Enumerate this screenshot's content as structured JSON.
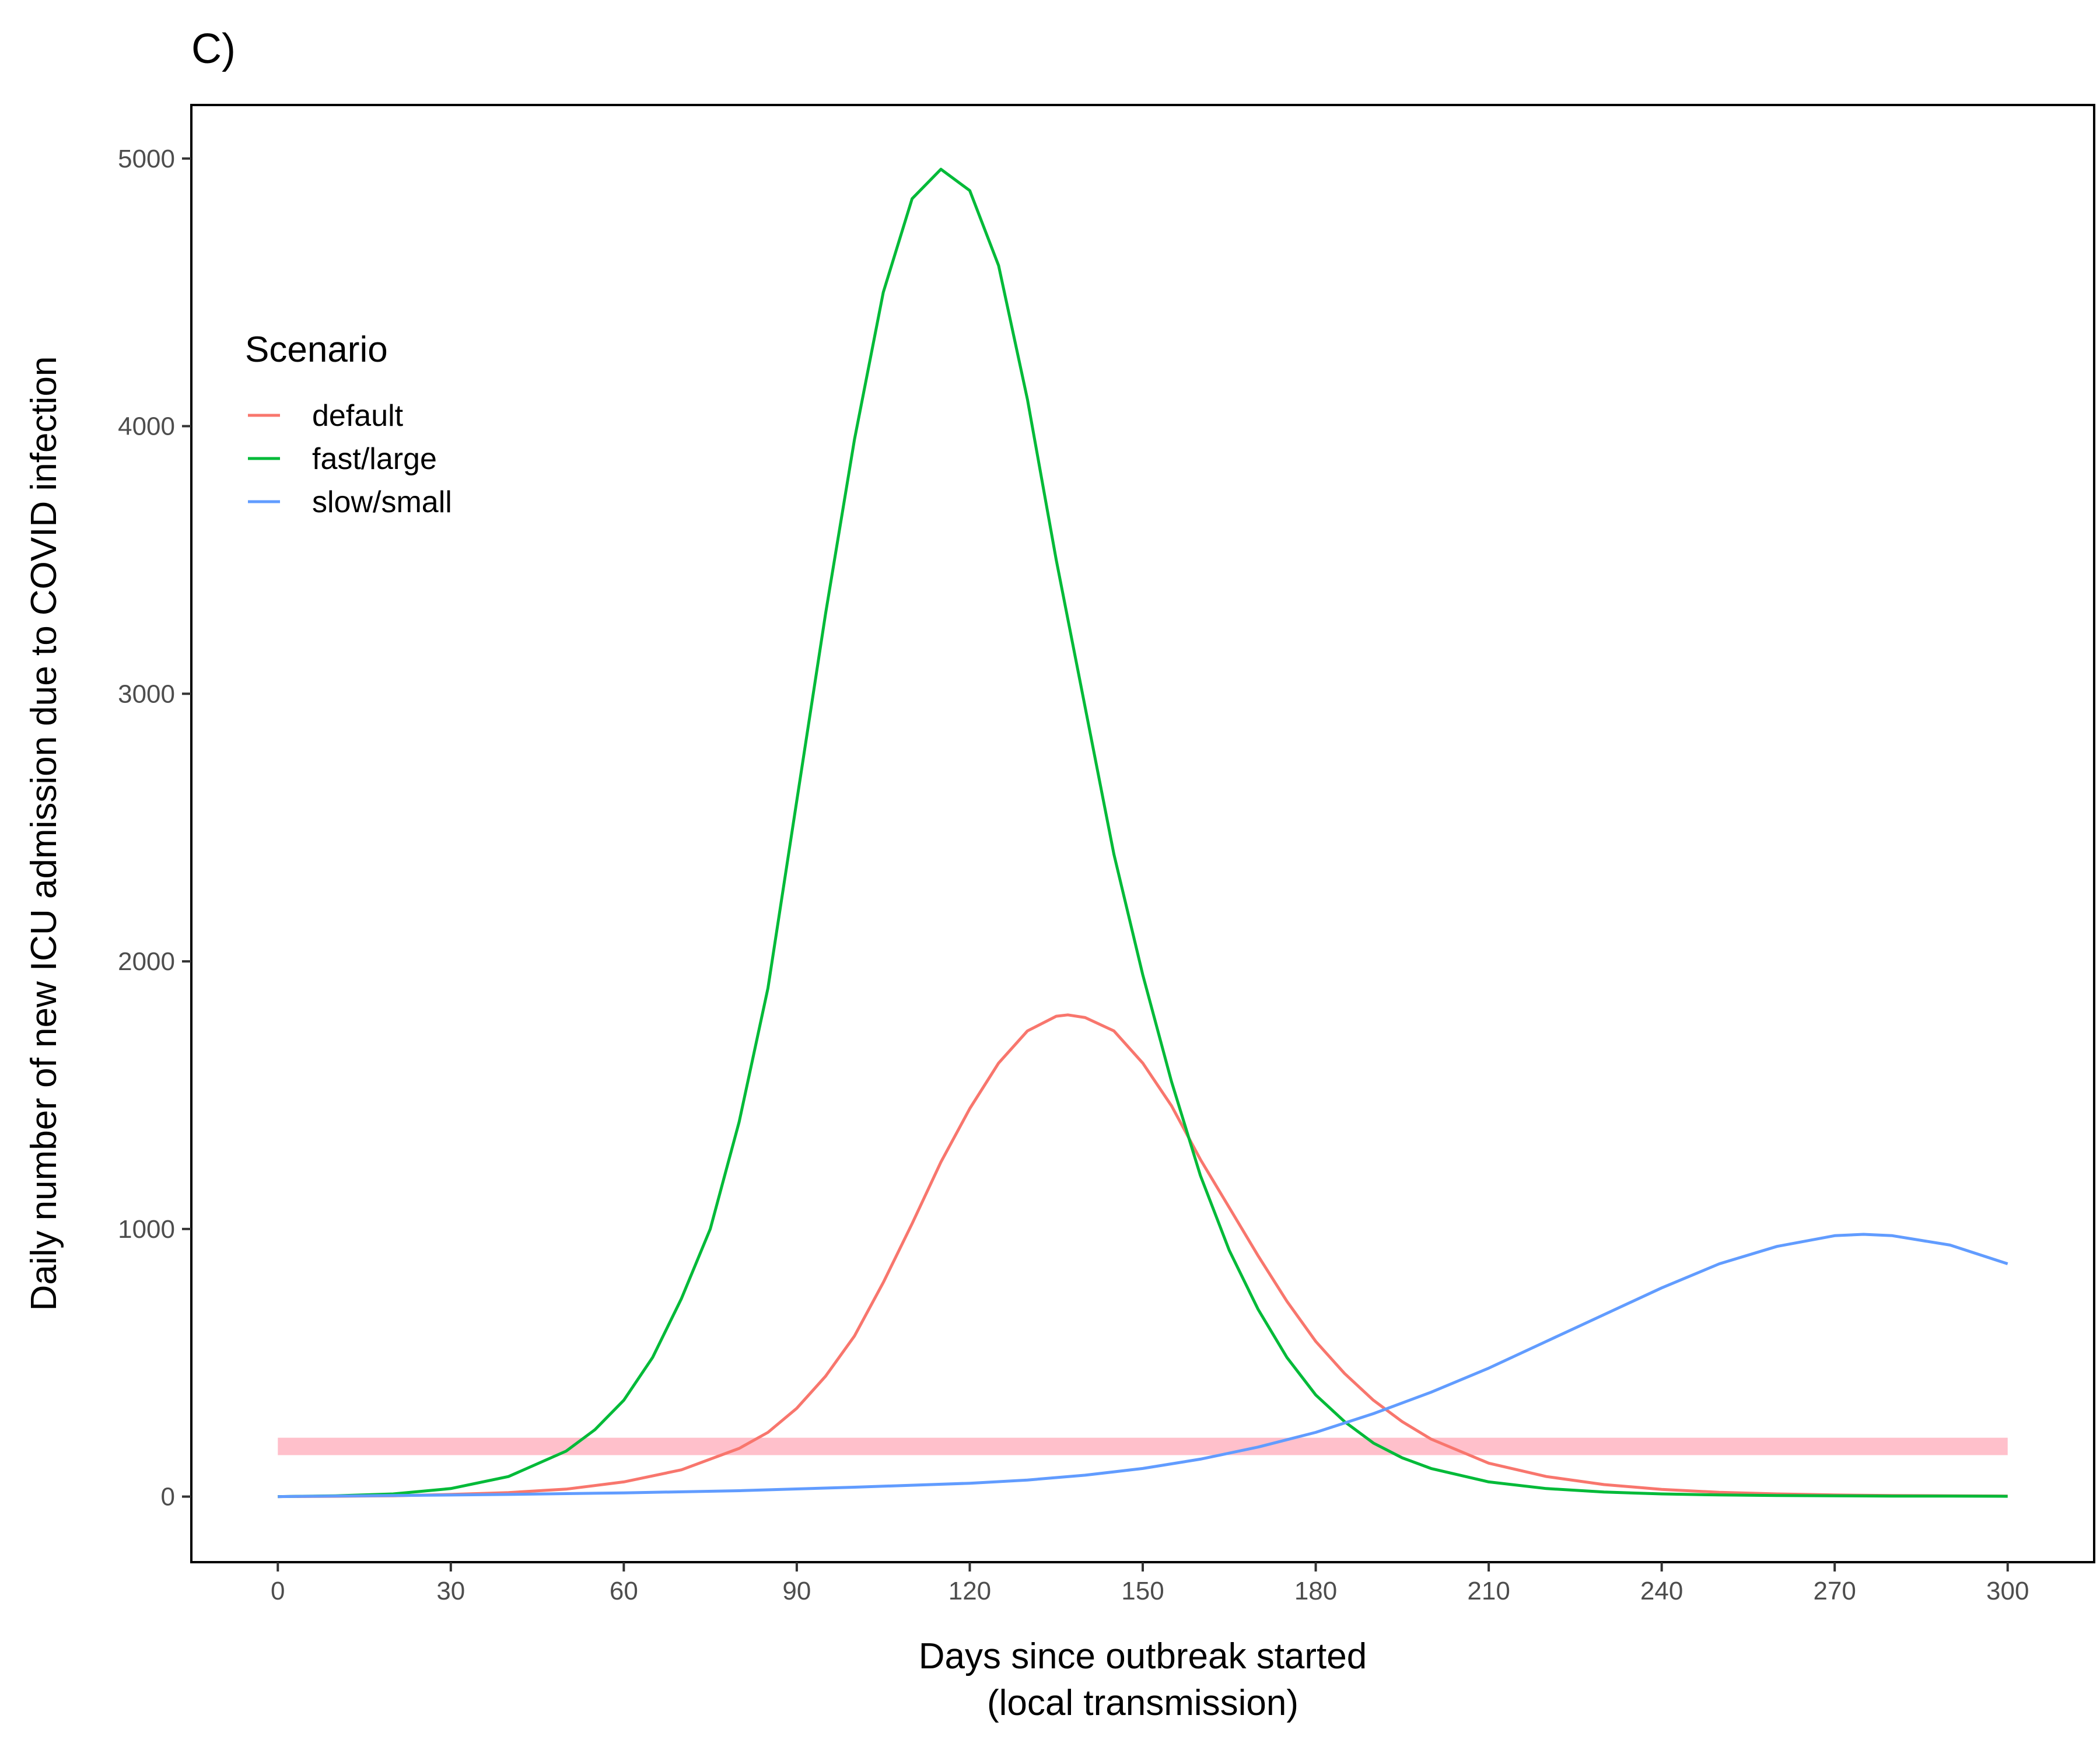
{
  "chart_data": {
    "type": "line",
    "title": "C)",
    "xlabel_lines": [
      "Days since outbreak started",
      "(local transmission)"
    ],
    "ylabel": "Daily number of new ICU admission due to COVID infection",
    "xlim": [
      -15,
      315
    ],
    "ylim": [
      -245,
      5200
    ],
    "x_ticks": [
      0,
      30,
      60,
      90,
      120,
      150,
      180,
      210,
      240,
      270,
      300
    ],
    "y_ticks": [
      0,
      1000,
      2000,
      3000,
      4000,
      5000
    ],
    "grid": false,
    "legend": {
      "title": "Scenario",
      "position": "top-left-inside"
    },
    "threshold_band": {
      "x": [
        0,
        300
      ],
      "y": [
        155,
        220
      ],
      "color": "#FFC0CB"
    },
    "series": [
      {
        "name": "default",
        "color": "#F8766D",
        "points": [
          [
            0,
            0
          ],
          [
            10,
            1
          ],
          [
            20,
            3
          ],
          [
            30,
            8
          ],
          [
            40,
            15
          ],
          [
            50,
            28
          ],
          [
            60,
            55
          ],
          [
            70,
            100
          ],
          [
            80,
            180
          ],
          [
            85,
            240
          ],
          [
            90,
            330
          ],
          [
            95,
            450
          ],
          [
            100,
            600
          ],
          [
            105,
            800
          ],
          [
            110,
            1020
          ],
          [
            115,
            1250
          ],
          [
            120,
            1450
          ],
          [
            125,
            1620
          ],
          [
            130,
            1740
          ],
          [
            135,
            1795
          ],
          [
            137,
            1800
          ],
          [
            140,
            1790
          ],
          [
            145,
            1740
          ],
          [
            150,
            1620
          ],
          [
            155,
            1460
          ],
          [
            160,
            1260
          ],
          [
            165,
            1080
          ],
          [
            170,
            900
          ],
          [
            175,
            730
          ],
          [
            180,
            580
          ],
          [
            185,
            460
          ],
          [
            190,
            360
          ],
          [
            195,
            280
          ],
          [
            200,
            215
          ],
          [
            210,
            125
          ],
          [
            220,
            75
          ],
          [
            230,
            45
          ],
          [
            240,
            27
          ],
          [
            250,
            16
          ],
          [
            260,
            10
          ],
          [
            270,
            6
          ],
          [
            280,
            4
          ],
          [
            290,
            3
          ],
          [
            300,
            2
          ]
        ]
      },
      {
        "name": "fast/large",
        "color": "#00BA38",
        "points": [
          [
            0,
            0
          ],
          [
            10,
            3
          ],
          [
            20,
            10
          ],
          [
            30,
            30
          ],
          [
            40,
            75
          ],
          [
            50,
            170
          ],
          [
            55,
            250
          ],
          [
            60,
            360
          ],
          [
            65,
            520
          ],
          [
            70,
            740
          ],
          [
            75,
            1000
          ],
          [
            80,
            1400
          ],
          [
            85,
            1900
          ],
          [
            90,
            2600
          ],
          [
            95,
            3300
          ],
          [
            100,
            3950
          ],
          [
            105,
            4500
          ],
          [
            110,
            4850
          ],
          [
            115,
            4960
          ],
          [
            120,
            4880
          ],
          [
            125,
            4600
          ],
          [
            130,
            4100
          ],
          [
            135,
            3500
          ],
          [
            140,
            2950
          ],
          [
            145,
            2400
          ],
          [
            150,
            1950
          ],
          [
            155,
            1550
          ],
          [
            160,
            1200
          ],
          [
            165,
            920
          ],
          [
            170,
            700
          ],
          [
            175,
            520
          ],
          [
            180,
            380
          ],
          [
            185,
            280
          ],
          [
            190,
            200
          ],
          [
            195,
            145
          ],
          [
            200,
            105
          ],
          [
            210,
            55
          ],
          [
            220,
            30
          ],
          [
            230,
            17
          ],
          [
            240,
            10
          ],
          [
            250,
            6
          ],
          [
            260,
            4
          ],
          [
            270,
            3
          ],
          [
            280,
            2
          ],
          [
            290,
            2
          ],
          [
            300,
            1
          ]
        ]
      },
      {
        "name": "slow/small",
        "color": "#619CFF",
        "points": [
          [
            0,
            0
          ],
          [
            20,
            4
          ],
          [
            40,
            8
          ],
          [
            60,
            14
          ],
          [
            80,
            22
          ],
          [
            100,
            35
          ],
          [
            120,
            50
          ],
          [
            130,
            62
          ],
          [
            140,
            80
          ],
          [
            150,
            105
          ],
          [
            160,
            140
          ],
          [
            170,
            185
          ],
          [
            180,
            240
          ],
          [
            190,
            310
          ],
          [
            200,
            390
          ],
          [
            210,
            480
          ],
          [
            220,
            580
          ],
          [
            230,
            680
          ],
          [
            240,
            780
          ],
          [
            250,
            870
          ],
          [
            260,
            935
          ],
          [
            270,
            975
          ],
          [
            275,
            980
          ],
          [
            280,
            975
          ],
          [
            290,
            940
          ],
          [
            300,
            870
          ]
        ]
      }
    ]
  }
}
